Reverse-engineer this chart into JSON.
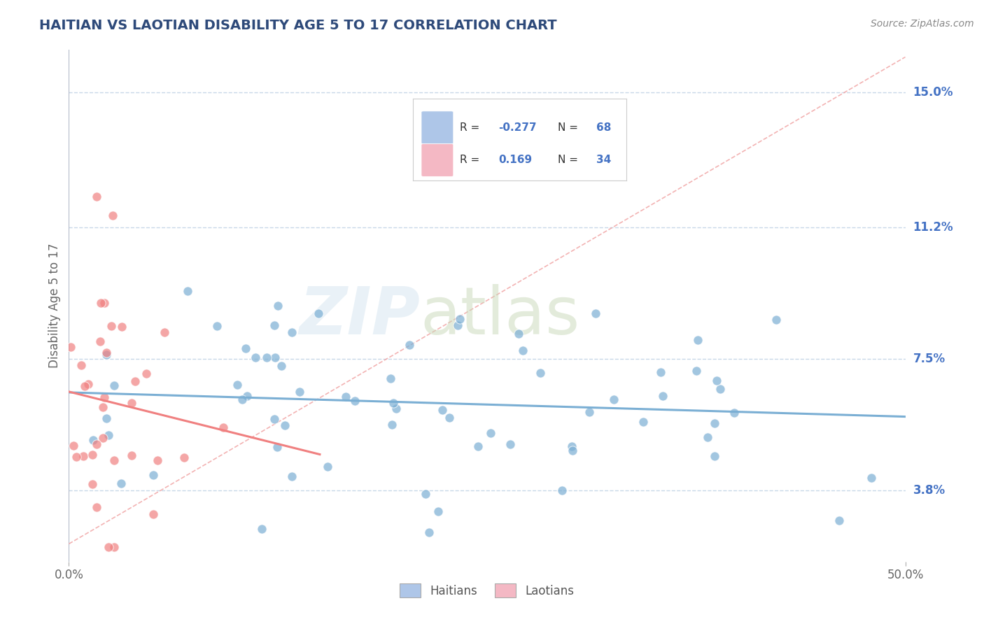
{
  "title": "HAITIAN VS LAOTIAN DISABILITY AGE 5 TO 17 CORRELATION CHART",
  "source": "Source: ZipAtlas.com",
  "ylabel": "Disability Age 5 to 17",
  "y_ticks_pct": [
    3.8,
    7.5,
    11.2,
    15.0
  ],
  "x_min": 0.0,
  "x_max": 0.5,
  "y_min": 0.018,
  "y_max": 0.162,
  "haitian_color": "#7bafd4",
  "haitian_color_light": "#aec6e8",
  "laotian_color": "#f08080",
  "laotian_color_light": "#f4b8c4",
  "haitian_R": -0.277,
  "haitian_N": 68,
  "laotian_R": 0.169,
  "laotian_N": 34,
  "title_color": "#2E4A7A",
  "tick_color": "#4472c4",
  "background_color": "#ffffff",
  "grid_color": "#c8d8e8",
  "diagonal_color": "#f0a0a0",
  "legend_R_color": "#4472c4",
  "legend_N_color": "#4472c4"
}
